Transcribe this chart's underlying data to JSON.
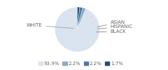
{
  "labels": [
    "WHITE",
    "ASIAN",
    "HISPANIC",
    "BLACK"
  ],
  "values": [
    93.9,
    2.2,
    2.2,
    1.7
  ],
  "colors": [
    "#d9e4f0",
    "#7aa8c8",
    "#4878a0",
    "#1e4d78"
  ],
  "legend_colors": [
    "#d9e4f0",
    "#8eacc8",
    "#4d7aab",
    "#1f4e79"
  ],
  "legend_labels": [
    "93.9%",
    "2.2%",
    "2.2%",
    "1.7%"
  ],
  "label_fontsize": 5.0,
  "legend_fontsize": 5.0,
  "startangle": 90,
  "background_color": "#ffffff"
}
